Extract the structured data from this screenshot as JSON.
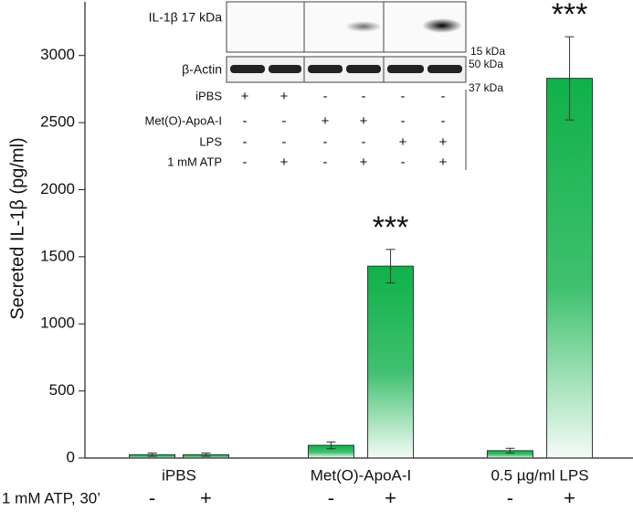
{
  "chart_data": {
    "type": "bar",
    "y_label": "Secreted IL-1β  (pg/ml)",
    "categories": [
      "iPBS",
      "Met(O)-ApoA-I",
      "0.5 µg/ml LPS"
    ],
    "treatment_label": "1 mM ATP, 30’",
    "color": "#0fb14a",
    "series": [
      {
        "name": "-",
        "values": [
          25,
          95,
          55
        ],
        "errors": [
          12,
          25,
          18
        ],
        "significance": [
          null,
          null,
          null
        ]
      },
      {
        "name": "+",
        "values": [
          25,
          1430,
          2830
        ],
        "errors": [
          12,
          125,
          310
        ],
        "significance": [
          null,
          "***",
          "***"
        ]
      }
    ],
    "ylim": [
      0,
      3400
    ],
    "yticks": [
      0,
      500,
      1000,
      1500,
      2000,
      2500,
      3000
    ],
    "inset": {
      "blot_labels": [
        "IL-1β 17 kDa",
        "β-Actin"
      ],
      "markers": [
        "15 kDa",
        "50 kDa",
        "37 kDa"
      ],
      "rows": [
        {
          "label": "iPBS",
          "cells": [
            "+",
            "+",
            "-",
            "-",
            "-",
            "-"
          ]
        },
        {
          "label": "Met(O)-ApoA-I",
          "cells": [
            "-",
            "-",
            "+",
            "+",
            "-",
            "-"
          ]
        },
        {
          "label": "LPS",
          "cells": [
            "-",
            "-",
            "-",
            "-",
            "+",
            "+"
          ]
        },
        {
          "label": "1 mM ATP",
          "cells": [
            "-",
            "+",
            "-",
            "+",
            "-",
            "+"
          ]
        }
      ]
    }
  }
}
